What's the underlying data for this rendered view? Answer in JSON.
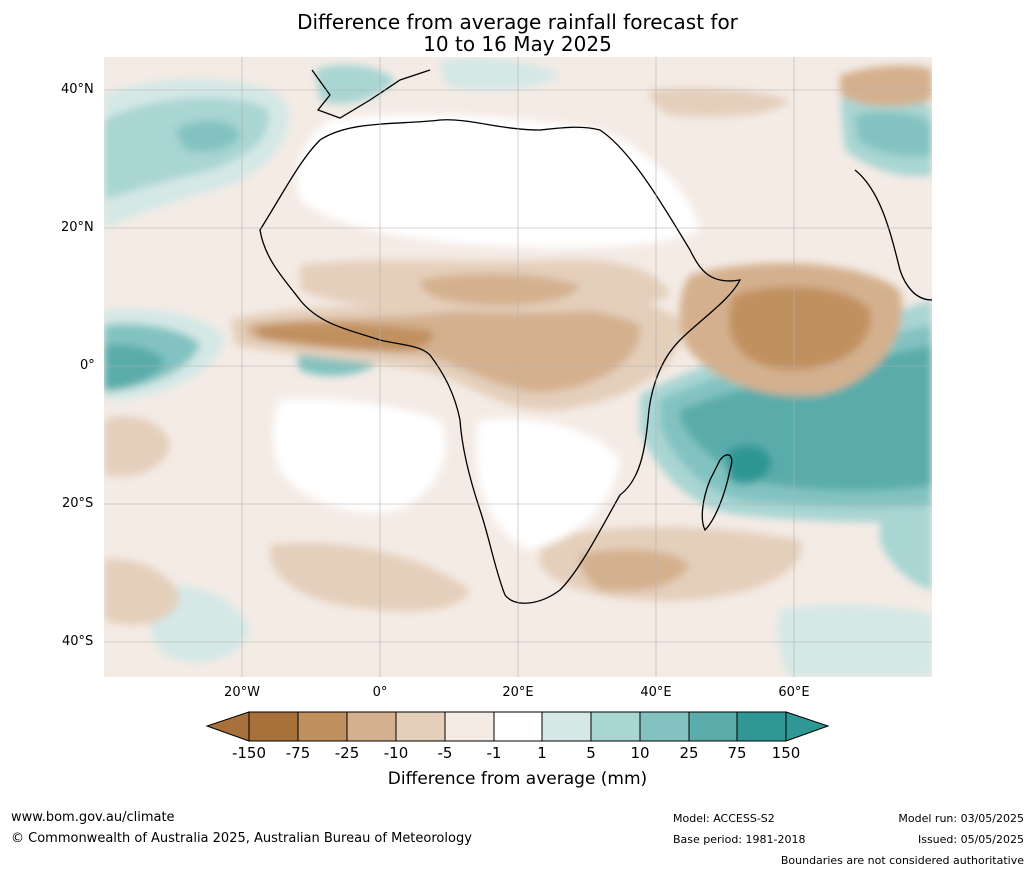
{
  "title_line1": "Difference from average rainfall forecast for",
  "title_line2": "10 to 16 May 2025",
  "map": {
    "lat_labels": [
      "40°N",
      "20°N",
      "0°",
      "20°S",
      "40°S"
    ],
    "lon_labels": [
      "20°W",
      "0°",
      "20°E",
      "40°E",
      "60°E"
    ],
    "extent": {
      "lon_min": -40,
      "lon_max": 80,
      "lat_min": -45,
      "lat_max": 45
    }
  },
  "colorbar": {
    "ticks": [
      "-150",
      "-75",
      "-25",
      "-10",
      "-5",
      "-1",
      "1",
      "5",
      "10",
      "25",
      "75",
      "150"
    ],
    "colors": [
      "#a8713b",
      "#c1905f",
      "#d4b08e",
      "#e4cfbb",
      "#f4ebe5",
      "#ffffff",
      "#d4e8e6",
      "#a9d5d3",
      "#82c3c1",
      "#5aacaa",
      "#2f9794"
    ],
    "label": "Difference from average (mm)"
  },
  "footer": {
    "website": "www.bom.gov.au/climate",
    "copyright": "© Commonwealth of Australia 2025, Australian Bureau of Meteorology",
    "model": "Model: ACCESS-S2",
    "base_period": "Base period: 1981-2018",
    "model_run": "Model run: 03/05/2025",
    "issued": "Issued: 05/05/2025",
    "disclaimer": "Boundaries are not considered authoritative"
  }
}
